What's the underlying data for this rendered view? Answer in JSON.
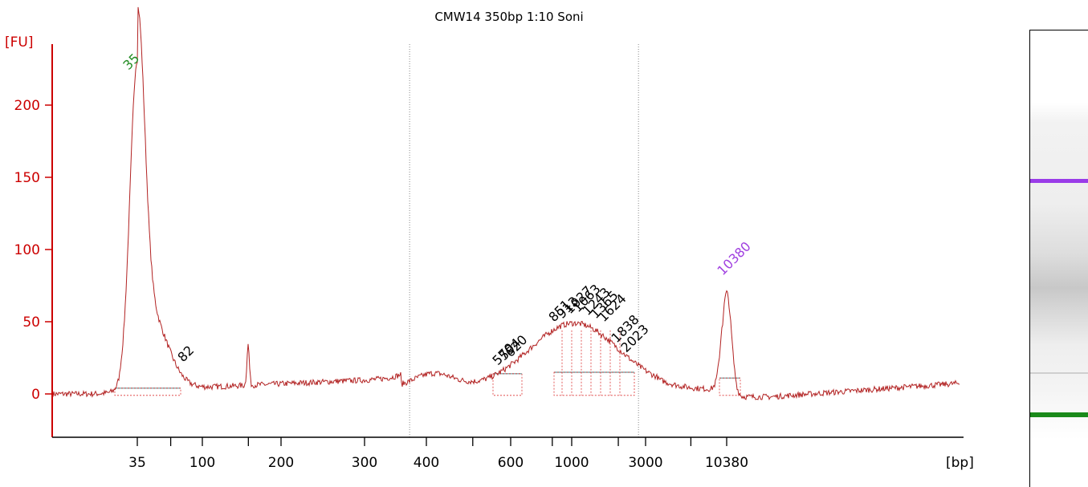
{
  "chart_data": {
    "type": "line",
    "title": "CMW14 350bp 1:10 Soni",
    "ylabel": "[FU]",
    "xlabel": "[bp]",
    "ylim": [
      -25,
      235
    ],
    "yticks": [
      0,
      50,
      100,
      150,
      200
    ],
    "xtick_labels": [
      "35",
      "100",
      "200",
      "300",
      "400",
      "600",
      "1000",
      "3000",
      "10380"
    ],
    "region_dividers_bp": [
      370,
      2700
    ],
    "series": [
      {
        "color": "#b22222",
        "points": [
          [
            "35",
            220
          ],
          [
            "82",
            22
          ],
          [
            "150",
            30
          ],
          [
            "400",
            13
          ],
          [
            "570",
            15
          ],
          [
            "851",
            44
          ],
          [
            "1000",
            48
          ],
          [
            "1624",
            38
          ],
          [
            "2023",
            22
          ],
          [
            "3000",
            8
          ],
          [
            "10380",
            76
          ]
        ]
      }
    ],
    "peak_labels": [
      {
        "text": "35",
        "color": "#228b22",
        "kind": "marker"
      },
      {
        "text": "82",
        "color": "#000000"
      },
      {
        "text": "570",
        "color": "#000000"
      },
      {
        "text": "594",
        "color": "#000000"
      },
      {
        "text": "620",
        "color": "#000000"
      },
      {
        "text": "851",
        "color": "#000000"
      },
      {
        "text": "913",
        "color": "#000000"
      },
      {
        "text": "1027",
        "color": "#000000"
      },
      {
        "text": "1063",
        "color": "#000000"
      },
      {
        "text": "1243",
        "color": "#000000"
      },
      {
        "text": "1365",
        "color": "#000000"
      },
      {
        "text": "1624",
        "color": "#000000"
      },
      {
        "text": "1838",
        "color": "#000000"
      },
      {
        "text": "2023",
        "color": "#000000"
      },
      {
        "text": "10380",
        "color": "#a040e0",
        "kind": "marker"
      }
    ],
    "gel": {
      "lower_marker_color": "#1a8a1a",
      "upper_marker_color": "#9a3ce8"
    }
  }
}
